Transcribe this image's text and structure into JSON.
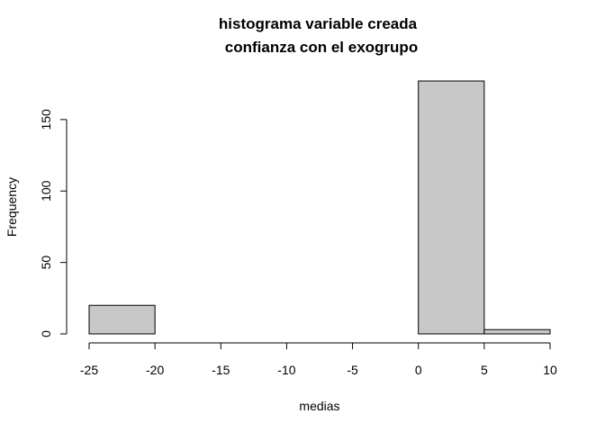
{
  "chart_data": {
    "type": "bar",
    "subtype": "histogram",
    "title_line1": "histograma variable creada",
    "title_line2": "confianza con el exogrupo",
    "xlabel": "medias",
    "ylabel": "Frequency",
    "bins": [
      {
        "x0": -25,
        "x1": -20,
        "count": 20
      },
      {
        "x0": -20,
        "x1": -15,
        "count": 0
      },
      {
        "x0": -15,
        "x1": -10,
        "count": 0
      },
      {
        "x0": -10,
        "x1": -5,
        "count": 0
      },
      {
        "x0": -5,
        "x1": 0,
        "count": 0
      },
      {
        "x0": 0,
        "x1": 5,
        "count": 177
      },
      {
        "x0": 5,
        "x1": 10,
        "count": 3
      }
    ],
    "xticks": [
      -25,
      -20,
      -15,
      -10,
      -5,
      0,
      5,
      10
    ],
    "xtick_labels": [
      "-25",
      "-20",
      "-15",
      "-10",
      "-5",
      "0",
      "5",
      "10"
    ],
    "yticks": [
      0,
      50,
      100,
      150
    ],
    "ytick_labels": [
      "0",
      "50",
      "100",
      "150"
    ],
    "xlim": [
      -25,
      10
    ],
    "ylim": [
      0,
      177
    ],
    "bar_fill": "#c8c8c8",
    "bar_stroke": "#000000",
    "grid": false
  }
}
